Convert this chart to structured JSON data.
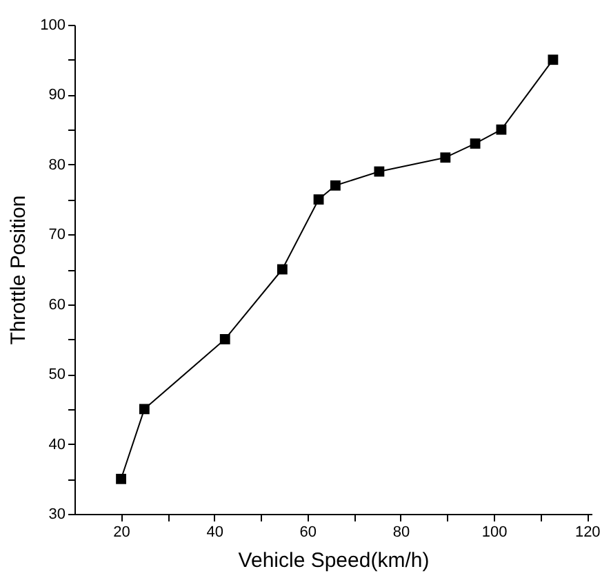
{
  "chart_data": {
    "type": "line",
    "xlabel": "Vehicle Speed(km/h)",
    "ylabel": "Throttle Position",
    "x": [
      20,
      25,
      42.3,
      54.6,
      62.4,
      66,
      75.4,
      89.6,
      96,
      101.6,
      112.7
    ],
    "series": [
      {
        "color": "#000000",
        "values": [
          35,
          45,
          55,
          65,
          75,
          77,
          79,
          81,
          83,
          85,
          95
        ]
      }
    ],
    "xlim": [
      10,
      121
    ],
    "ylim": [
      30,
      100
    ],
    "xticks": [
      20,
      {
        "value": 30,
        "label": null
      },
      40,
      {
        "value": 50,
        "label": null
      },
      60,
      {
        "value": 70,
        "label": null
      },
      80,
      {
        "value": 90,
        "label": null
      },
      100,
      {
        "value": 110,
        "label": null
      },
      120
    ],
    "yticks": [
      30,
      {
        "value": 35,
        "label": null
      },
      40,
      {
        "value": 45,
        "label": null
      },
      50,
      {
        "value": 55,
        "label": null
      },
      60,
      {
        "value": 65,
        "label": null
      },
      70,
      {
        "value": 75,
        "label": null
      },
      80,
      {
        "value": 85,
        "label": null
      },
      90,
      {
        "value": 95,
        "label": null
      },
      100
    ],
    "marker": "square",
    "line_style": "solid",
    "grid": false
  }
}
